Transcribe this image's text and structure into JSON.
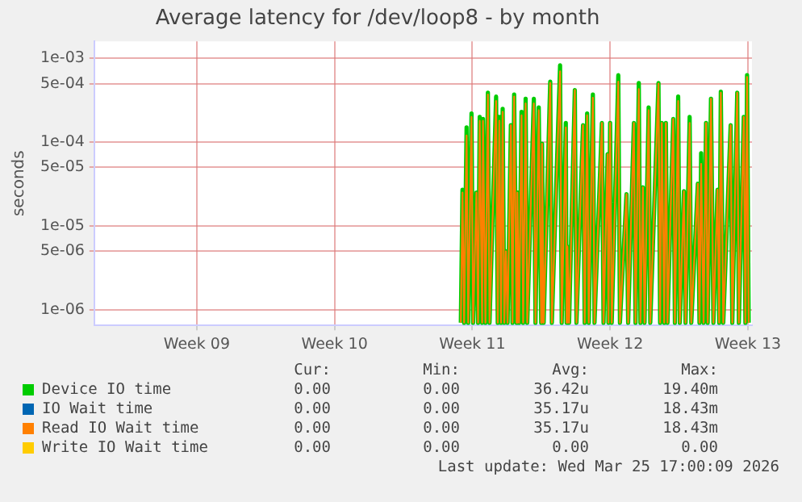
{
  "chart_data": {
    "type": "line",
    "title": "Average latency for /dev/loop8 - by month",
    "ylabel": "seconds",
    "log": "y",
    "grid": true,
    "legend": "bottom",
    "marker": "none",
    "line_style": "solid",
    "xlim": [
      "2026-02-17T19:00",
      "2026-03-23T05:00"
    ],
    "xticks": [
      {
        "value": "2026-02-23",
        "label": "Week 09"
      },
      {
        "value": "2026-03-02",
        "label": "Week 10"
      },
      {
        "value": "2026-03-09",
        "label": "Week 11"
      },
      {
        "value": "2026-03-16",
        "label": "Week 12"
      },
      {
        "value": "2026-03-23",
        "label": "Week 13"
      }
    ],
    "ylim": [
      6.5e-07,
      0.0016
    ],
    "yticks": [
      {
        "value": 1e-06,
        "label": "1e-06"
      },
      {
        "value": 5e-06,
        "label": "5e-06"
      },
      {
        "value": 1e-05,
        "label": "1e-05"
      },
      {
        "value": 5e-05,
        "label": "5e-05"
      },
      {
        "value": 0.0001,
        "label": "1e-04"
      },
      {
        "value": 0.0005,
        "label": "5e-04"
      },
      {
        "value": 0.001,
        "label": "1e-03"
      }
    ],
    "x": [
      "2026-03-08T10:00",
      "2026-03-08T12:00",
      "2026-03-08T14:00",
      "2026-03-08T17:00",
      "2026-03-08T19:00",
      "2026-03-08T23:00",
      "2026-03-09T01:00",
      "2026-03-09T05:00",
      "2026-03-09T07:00",
      "2026-03-09T09:00",
      "2026-03-09T12:00",
      "2026-03-09T13:00",
      "2026-03-09T16:00",
      "2026-03-09T19:00",
      "2026-03-09T21:00",
      "2026-03-10T05:00",
      "2026-03-10T07:00",
      "2026-03-10T09:00",
      "2026-03-10T11:00",
      "2026-03-10T13:00",
      "2026-03-10T15:00",
      "2026-03-10T17:00",
      "2026-03-10T19:00",
      "2026-03-10T23:00",
      "2026-03-11T01:00",
      "2026-03-11T03:00",
      "2026-03-11T06:00",
      "2026-03-11T07:00",
      "2026-03-11T09:00",
      "2026-03-11T12:00",
      "2026-03-11T14:00",
      "2026-03-11T17:00",
      "2026-03-11T19:00",
      "2026-03-12T03:00",
      "2026-03-12T05:00",
      "2026-03-12T09:00",
      "2026-03-12T12:00",
      "2026-03-12T13:00",
      "2026-03-12T15:00",
      "2026-03-12T23:00",
      "2026-03-13T01:00",
      "2026-03-13T11:00",
      "2026-03-13T13:00",
      "2026-03-13T18:00",
      "2026-03-13T19:00",
      "2026-03-13T20:00",
      "2026-03-13T22:00",
      "2026-03-14T05:00",
      "2026-03-14T07:00",
      "2026-03-14T15:00",
      "2026-03-14T17:00",
      "2026-03-14T20:00",
      "2026-03-14T22:00",
      "2026-03-15T03:00",
      "2026-03-15T05:00",
      "2026-03-15T14:00",
      "2026-03-15T16:00",
      "2026-03-15T21:00",
      "2026-03-15T22:00",
      "2026-03-16T00:00",
      "2026-03-16T02:00",
      "2026-03-16T10:00",
      "2026-03-16T12:00",
      "2026-03-16T20:00",
      "2026-03-16T22:00",
      "2026-03-17T05:00",
      "2026-03-17T07:00",
      "2026-03-17T11:00",
      "2026-03-17T13:00",
      "2026-03-17T16:00",
      "2026-03-17T18:00",
      "2026-03-17T23:00",
      "2026-03-18T01:00",
      "2026-03-18T11:00",
      "2026-03-18T13:00",
      "2026-03-18T15:00",
      "2026-03-18T18:00",
      "2026-03-18T20:00",
      "2026-03-18T22:00",
      "2026-03-19T05:00",
      "2026-03-19T07:00",
      "2026-03-19T11:00",
      "2026-03-19T13:00",
      "2026-03-19T18:00",
      "2026-03-19T20:00",
      "2026-03-20T01:00",
      "2026-03-20T03:00",
      "2026-03-20T11:00",
      "2026-03-20T13:00",
      "2026-03-20T15:00",
      "2026-03-20T18:00",
      "2026-03-20T21:00",
      "2026-03-20T23:00",
      "2026-03-21T03:00",
      "2026-03-21T06:00",
      "2026-03-21T11:00",
      "2026-03-21T13:00",
      "2026-03-21T15:00",
      "2026-03-21T18:00",
      "2026-03-22T03:00",
      "2026-03-22T05:00",
      "2026-03-22T11:00",
      "2026-03-22T13:00",
      "2026-03-22T19:00",
      "2026-03-22T21:00",
      "2026-03-22T23:00",
      "2026-03-23T01:00"
    ],
    "series": [
      {
        "name": "Device IO time",
        "color": "#00cc00",
        "values": [
          7e-07,
          2.7e-05,
          7e-07,
          0.00015,
          7e-07,
          0.00022,
          7e-07,
          2.5e-05,
          7e-07,
          0.0002,
          7e-07,
          0.00019,
          7e-07,
          0.00039,
          7e-07,
          0.00035,
          7e-07,
          0.0002,
          7e-07,
          0.00025,
          7e-07,
          5e-06,
          7e-07,
          0.00016,
          7e-07,
          0.00037,
          7e-07,
          2.5e-05,
          7e-07,
          0.00023,
          7e-07,
          0.00033,
          7e-07,
          0.00033,
          7e-07,
          0.00026,
          7e-07,
          9.6e-05,
          7e-07,
          0.00053,
          7e-07,
          0.00083,
          7e-07,
          0.00017,
          7e-07,
          5.7e-06,
          7e-07,
          0.00042,
          7e-07,
          0.00016,
          7e-07,
          0.00022,
          7e-07,
          0.00037,
          7e-07,
          0.00017,
          7e-07,
          7.2e-05,
          7e-07,
          0.00017,
          7e-07,
          0.00063,
          7e-07,
          2.4e-05,
          7e-07,
          0.00017,
          7e-07,
          0.00051,
          7e-07,
          2.9e-05,
          7e-07,
          0.00026,
          7e-07,
          0.00051,
          7e-07,
          0.00017,
          7e-07,
          0.00017,
          7e-07,
          0.00019,
          7e-07,
          0.00035,
          7e-07,
          2.6e-05,
          7e-07,
          0.0002,
          7e-07,
          3.2e-05,
          7e-07,
          7.4e-05,
          7e-07,
          0.00017,
          7e-07,
          0.00033,
          7e-07,
          2.7e-05,
          7e-07,
          0.0004,
          7e-07,
          0.00016,
          7e-07,
          0.00039,
          7e-07,
          0.0002,
          7e-07,
          0.00063,
          7e-07
        ]
      },
      {
        "name": "IO Wait time",
        "color": "#0066b3",
        "values": [
          null,
          null,
          null,
          null,
          null,
          null,
          null,
          null,
          null,
          null,
          null,
          null,
          null,
          null,
          null,
          null,
          null,
          null,
          null,
          null,
          null,
          null,
          null,
          null,
          null,
          null,
          null,
          null,
          null,
          null,
          null,
          null,
          null,
          null,
          null,
          null,
          null,
          null,
          null,
          null,
          null,
          null,
          null,
          null,
          null,
          null,
          null,
          null,
          null,
          null,
          null,
          null,
          null,
          null,
          null,
          null,
          null,
          null,
          null,
          null,
          null,
          null,
          null,
          null,
          null,
          null,
          null,
          null,
          null,
          null,
          null,
          null,
          null,
          null,
          null,
          null,
          null,
          null,
          null,
          null,
          null,
          null,
          null,
          null,
          null,
          null,
          null,
          null,
          null,
          null,
          null,
          null,
          null,
          null,
          null,
          null,
          null,
          null,
          null,
          null,
          null,
          null,
          null,
          null,
          null,
          null,
          null
        ]
      },
      {
        "name": "Read IO Wait time",
        "color": "#ff8000",
        "values": [
          7e-07,
          2.5e-05,
          7e-07,
          0.00012,
          7e-07,
          0.0002,
          7e-07,
          2.5e-05,
          7e-07,
          0.00018,
          7e-07,
          0.00018,
          7e-07,
          0.00037,
          7e-07,
          0.00031,
          7e-07,
          0.00018,
          7e-07,
          0.00023,
          7e-07,
          5e-06,
          7e-07,
          0.00016,
          7e-07,
          0.00035,
          7e-07,
          2.5e-05,
          7e-07,
          0.00021,
          7e-07,
          0.00029,
          7e-07,
          0.00029,
          7e-07,
          0.00024,
          7e-07,
          9.6e-05,
          7e-07,
          0.00051,
          7e-07,
          0.0007,
          7e-07,
          0.00015,
          7e-07,
          5.7e-06,
          7e-07,
          0.00042,
          7e-07,
          0.00016,
          7e-07,
          0.00021,
          7e-07,
          0.00034,
          7e-07,
          0.00017,
          7e-07,
          7.2e-05,
          7e-07,
          0.00017,
          7e-07,
          0.00053,
          7e-07,
          2.4e-05,
          7e-07,
          0.00017,
          7e-07,
          0.00043,
          7e-07,
          2.9e-05,
          7e-07,
          0.00024,
          7e-07,
          0.0005,
          7e-07,
          0.00017,
          7e-07,
          0.00017,
          7e-07,
          0.00019,
          7e-07,
          0.00031,
          7e-07,
          2.6e-05,
          7e-07,
          0.00017,
          7e-07,
          3.2e-05,
          7e-07,
          5.5e-05,
          7e-07,
          0.00017,
          7e-07,
          0.00033,
          7e-07,
          2.7e-05,
          7e-07,
          0.00039,
          7e-07,
          0.00016,
          7e-07,
          0.00039,
          7e-07,
          0.0002,
          7e-07,
          0.0006,
          7e-07
        ]
      },
      {
        "name": "Write IO Wait time",
        "color": "#ffcc00",
        "values": [
          null,
          null,
          null,
          null,
          null,
          null,
          null,
          null,
          null,
          null,
          null,
          null,
          null,
          null,
          null,
          null,
          null,
          null,
          null,
          null,
          null,
          null,
          null,
          null,
          null,
          null,
          null,
          null,
          null,
          null,
          null,
          null,
          null,
          null,
          null,
          null,
          null,
          null,
          null,
          null,
          null,
          null,
          null,
          null,
          null,
          null,
          null,
          null,
          null,
          null,
          null,
          null,
          null,
          null,
          null,
          null,
          null,
          null,
          null,
          null,
          null,
          null,
          null,
          null,
          null,
          null,
          null,
          null,
          null,
          null,
          null,
          null,
          null,
          null,
          null,
          null,
          null,
          null,
          null,
          null,
          null,
          null,
          null,
          null,
          null,
          null,
          null,
          null,
          null,
          null,
          null,
          null,
          null,
          null,
          null,
          null,
          null,
          null,
          null,
          null,
          null,
          null,
          null,
          null,
          null,
          null,
          null
        ]
      }
    ],
    "annotations": [
      "Cur:",
      "Min:",
      "Avg:",
      "Max:",
      "0.00",
      "0.00",
      "36.42u",
      "19.40m",
      "0.00",
      "0.00",
      "35.17u",
      "18.43m",
      "0.00",
      "0.00",
      "35.17u",
      "18.43m",
      "0.00",
      "0.00",
      "0.00",
      "0.00",
      "Last update: Wed Mar 25 17:00:09 2026"
    ]
  }
}
